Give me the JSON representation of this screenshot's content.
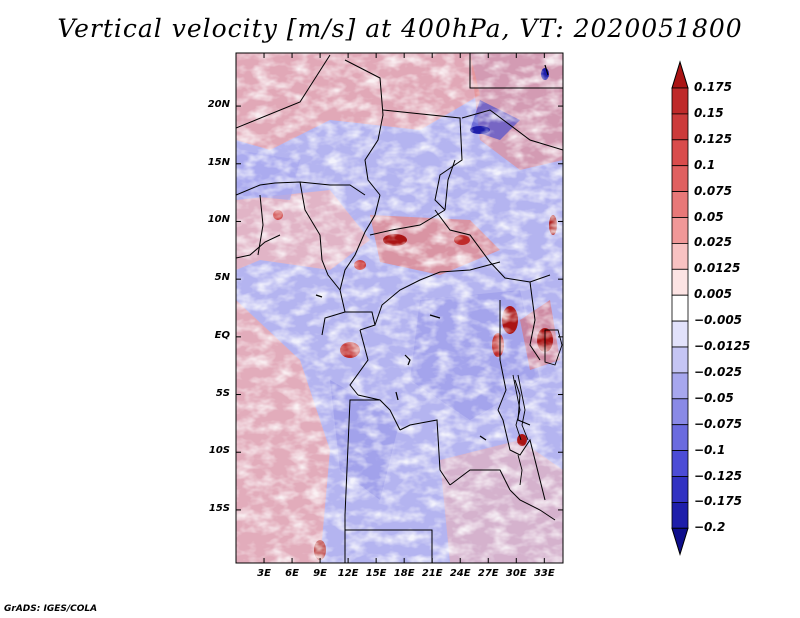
{
  "title": "Vertical velocity [m/s] at 400hPa, VT: 2020051800",
  "footer": "GrADS: IGES/COLA",
  "map": {
    "lat_labels": [
      "20N",
      "15N",
      "10N",
      "5N",
      "EQ",
      "5S",
      "10S",
      "15S"
    ],
    "lat_values": [
      20,
      15,
      10,
      5,
      0,
      -5,
      -10,
      -15
    ],
    "lon_labels": [
      "3E",
      "6E",
      "9E",
      "12E",
      "15E",
      "18E",
      "21E",
      "24E",
      "27E",
      "30E",
      "33E"
    ],
    "lon_values": [
      3,
      6,
      9,
      12,
      15,
      18,
      21,
      24,
      27,
      30,
      33
    ],
    "extent": {
      "lon_min": 0,
      "lon_max": 35,
      "lat_min": -19.6,
      "lat_max": 24.6
    }
  },
  "colorbar": {
    "levels": [
      "0.175",
      "0.15",
      "0.125",
      "0.1",
      "0.075",
      "0.05",
      "0.025",
      "0.0125",
      "0.005",
      "−0.005",
      "−0.0125",
      "−0.025",
      "−0.05",
      "−0.075",
      "−0.1",
      "−0.125",
      "−0.175",
      "−0.2"
    ],
    "colors": [
      "#aa1414",
      "#bf2a2a",
      "#cc3b3b",
      "#d94c4c",
      "#e06060",
      "#e87878",
      "#f09898",
      "#f8c2c2",
      "#fde4e4",
      "#ffffff",
      "#e2e2fb",
      "#c5c5f4",
      "#a7a7ee",
      "#8a8ae6",
      "#6b6bdf",
      "#4c4cd6",
      "#3232c2",
      "#1e1eaa",
      "#0e0e8c"
    ]
  }
}
